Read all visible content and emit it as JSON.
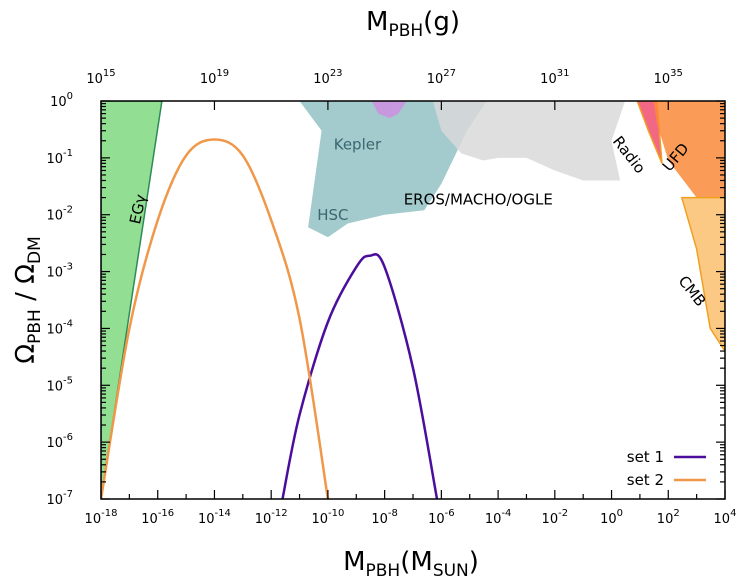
{
  "chart_data": {
    "type": "line",
    "xscale": "log",
    "yscale": "log",
    "xlim": [
      1e-18,
      10000.0
    ],
    "ylim": [
      1e-07,
      1
    ],
    "xlabel": {
      "base": "M",
      "sub": "PBH",
      "open": "(",
      "unit_base": "M",
      "unit_sub": "SUN",
      "close": ")"
    },
    "ylabel": {
      "base1": "Ω",
      "sub1": "PBH",
      "sep": " / ",
      "base2": "Ω",
      "sub2": "DM"
    },
    "x2label": {
      "base": "M",
      "sub": "PBH",
      "unit": "(g)"
    },
    "xticks": [
      {
        "base": "10",
        "exp": "-18",
        "value": 1e-18
      },
      {
        "base": "10",
        "exp": "-16",
        "value": 1e-16
      },
      {
        "base": "10",
        "exp": "-14",
        "value": 1e-14
      },
      {
        "base": "10",
        "exp": "-12",
        "value": 1e-12
      },
      {
        "base": "10",
        "exp": "-10",
        "value": 1e-10
      },
      {
        "base": "10",
        "exp": "-8",
        "value": 1e-08
      },
      {
        "base": "10",
        "exp": "-6",
        "value": 1e-06
      },
      {
        "base": "10",
        "exp": "-4",
        "value": 0.0001
      },
      {
        "base": "10",
        "exp": "-2",
        "value": 0.01
      },
      {
        "base": "10",
        "exp": "0",
        "value": 1
      },
      {
        "base": "10",
        "exp": "2",
        "value": 100.0
      },
      {
        "base": "10",
        "exp": "4",
        "value": 10000.0
      }
    ],
    "yticks": [
      {
        "base": "10",
        "exp": "-7",
        "value": 1e-07
      },
      {
        "base": "10",
        "exp": "-6",
        "value": 1e-06
      },
      {
        "base": "10",
        "exp": "-5",
        "value": 1e-05
      },
      {
        "base": "10",
        "exp": "-4",
        "value": 0.0001
      },
      {
        "base": "10",
        "exp": "-3",
        "value": 0.001
      },
      {
        "base": "10",
        "exp": "-2",
        "value": 0.01
      },
      {
        "base": "10",
        "exp": "-1",
        "value": 0.1
      },
      {
        "base": "10",
        "exp": "0",
        "value": 1
      }
    ],
    "x2ticks": [
      {
        "base": "10",
        "exp": "15",
        "value": 1e-18
      },
      {
        "base": "10",
        "exp": "19",
        "value": 1e-14
      },
      {
        "base": "10",
        "exp": "23",
        "value": 1e-10
      },
      {
        "base": "10",
        "exp": "27",
        "value": 1e-06
      },
      {
        "base": "10",
        "exp": "31",
        "value": 0.01
      },
      {
        "base": "10",
        "exp": "35",
        "value": 100.0
      }
    ],
    "legend_position": "bottom-right",
    "series": [
      {
        "name": "set 1",
        "color": "#4b0e9c",
        "x": [
          2.5e-12,
          1e-11,
          1e-10,
          1e-09,
          3e-09,
          1e-08,
          1e-07,
          7e-07
        ],
        "y": [
          1e-07,
          3e-06,
          0.00013,
          0.0012,
          0.0019,
          0.0012,
          2e-05,
          1e-07
        ]
      },
      {
        "name": "set 2",
        "color": "#f0984a",
        "x": [
          1e-18,
          1e-17,
          1e-16,
          1e-15,
          1e-14,
          1e-13,
          1e-12,
          1e-11,
          1e-10
        ],
        "y": [
          1e-07,
          0.0001,
          0.008,
          0.11,
          0.21,
          0.11,
          0.008,
          0.00015,
          1e-07
        ]
      }
    ],
    "regions": [
      {
        "label": "EGγ",
        "color": "#7fd87f",
        "stroke": "#2e8b57",
        "label_at": [
          3e-17,
          0.012
        ],
        "label_rotate": -78,
        "points": [
          [
            1e-18,
            1e-07
          ],
          [
            1e-18,
            1
          ],
          [
            1.4e-16,
            1
          ],
          [
            1e-18,
            1e-07
          ]
        ]
      },
      {
        "label": "HSC",
        "color": "#93c2c4",
        "stroke": "none",
        "label_at": [
          1.5e-10,
          0.008
        ],
        "label_rotate": 0,
        "points": [
          [
            1e-11,
            1
          ],
          [
            6e-11,
            0.3
          ],
          [
            2e-11,
            0.006
          ],
          [
            1e-10,
            0.004
          ],
          [
            5e-10,
            0.007
          ],
          [
            1e-08,
            0.01
          ],
          [
            2.5e-07,
            0.012
          ],
          [
            1e-06,
            0.035
          ],
          [
            8e-06,
            0.3
          ],
          [
            4e-05,
            1
          ]
        ]
      },
      {
        "label": "Kepler",
        "color": "#cf8fe0",
        "stroke": "none",
        "label_at": [
          1.1e-09,
          0.14
        ],
        "label_rotate": 0,
        "points": [
          [
            3.5e-09,
            1
          ],
          [
            6e-09,
            0.6
          ],
          [
            1.5e-08,
            0.5
          ],
          [
            3e-08,
            0.6
          ],
          [
            6e-08,
            1
          ]
        ]
      },
      {
        "label": "EROS/MACHO/OGLE",
        "color": "#d9d9d9",
        "stroke": "none",
        "label_at": [
          2e-05,
          0.015
        ],
        "label_rotate": 0,
        "points": [
          [
            5e-07,
            1
          ],
          [
            1e-06,
            0.3
          ],
          [
            5e-06,
            0.12
          ],
          [
            3e-05,
            0.09
          ],
          [
            0.0001,
            0.1
          ],
          [
            0.001,
            0.1
          ],
          [
            0.01,
            0.06
          ],
          [
            0.1,
            0.04
          ],
          [
            2,
            0.04
          ],
          [
            1,
            0.2
          ],
          [
            3,
            1
          ]
        ]
      },
      {
        "label": "Radio",
        "color": "#f04e6e",
        "stroke": "#f0a020",
        "label_at": [
          3,
          0.1
        ],
        "label_rotate": 52,
        "points": [
          [
            8,
            1
          ],
          [
            20,
            0.3
          ],
          [
            60,
            0.08
          ],
          [
            40,
            1
          ]
        ]
      },
      {
        "label": "UFD",
        "color": "#f98a3a",
        "stroke": "none",
        "label_at": [
          250,
          0.09
        ],
        "label_rotate": -50,
        "points": [
          [
            30,
            1
          ],
          [
            40,
            0.4
          ],
          [
            100,
            0.09
          ],
          [
            1000.0,
            0.02
          ],
          [
            10000.0,
            0.02
          ],
          [
            10000.0,
            1
          ]
        ]
      },
      {
        "label": "CMB",
        "color": "#fcc070",
        "stroke": "#f0a020",
        "label_at": [
          500,
          0.0004
        ],
        "label_rotate": 52,
        "points": [
          [
            300,
            0.02
          ],
          [
            1000.0,
            0.0025
          ],
          [
            3000.0,
            0.0001
          ],
          [
            10000.0,
            4e-05
          ],
          [
            10000.0,
            0.02
          ]
        ]
      }
    ]
  }
}
